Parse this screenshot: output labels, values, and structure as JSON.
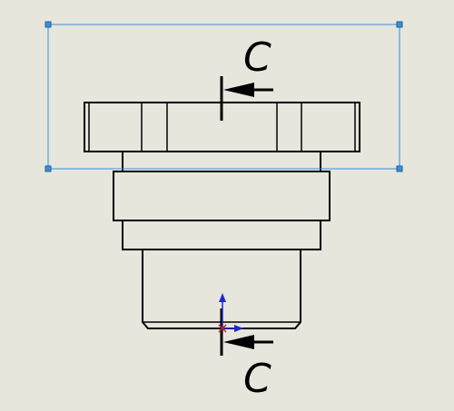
{
  "section_view": {
    "label_top": "C",
    "label_bottom": "C"
  },
  "colors": {
    "background": "#e6e6dc",
    "selection": "#3b8fd6",
    "triad": "#1e28c8",
    "origin": "#c81e1e"
  }
}
